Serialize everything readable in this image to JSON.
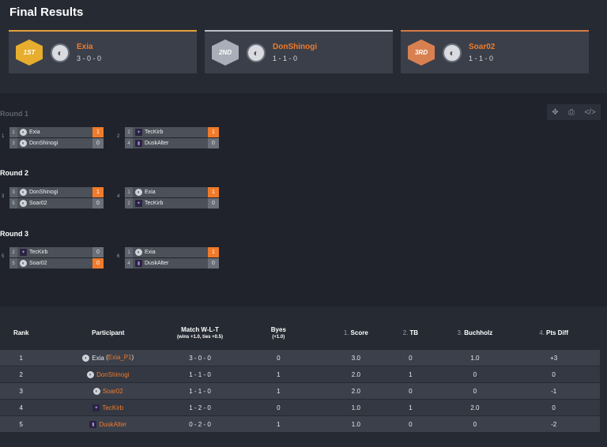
{
  "title": "Final Results",
  "podium": [
    {
      "medal": "1ST",
      "name": "Exia",
      "record": "3 - 0 - 0"
    },
    {
      "medal": "2ND",
      "name": "DonShinogi",
      "record": "1 - 1 - 0"
    },
    {
      "medal": "3RD",
      "name": "Soar02",
      "record": "1 - 1 - 0"
    }
  ],
  "tools": {
    "move_icon": "✥",
    "print_icon": "⎙",
    "code_icon": "</>"
  },
  "rounds": [
    {
      "label": "Round 1",
      "matches": [
        {
          "num": "1",
          "p": [
            {
              "seed": "1",
              "name": "Exia",
              "score": "1"
            },
            {
              "seed": "3",
              "name": "DonShinogi",
              "score": "0"
            }
          ]
        },
        {
          "num": "2",
          "p": [
            {
              "seed": "2",
              "name": "TecKirb",
              "score": "1"
            },
            {
              "seed": "4",
              "name": "DuskAlter",
              "score": "0"
            }
          ]
        }
      ]
    },
    {
      "label": "Round 2",
      "matches": [
        {
          "num": "3",
          "p": [
            {
              "seed": "3",
              "name": "DonShinogi",
              "score": "1"
            },
            {
              "seed": "5",
              "name": "Soar02",
              "score": "0"
            }
          ]
        },
        {
          "num": "4",
          "p": [
            {
              "seed": "1",
              "name": "Exia",
              "score": "1"
            },
            {
              "seed": "2",
              "name": "TecKirb",
              "score": "0"
            }
          ]
        }
      ]
    },
    {
      "label": "Round 3",
      "matches": [
        {
          "num": "5",
          "p": [
            {
              "seed": "2",
              "name": "TecKirb",
              "score": "0"
            },
            {
              "seed": "5",
              "name": "Soar02",
              "score": "0"
            }
          ]
        },
        {
          "num": "6",
          "p": [
            {
              "seed": "1",
              "name": "Exia",
              "score": "1"
            },
            {
              "seed": "4",
              "name": "DuskAlter",
              "score": "0"
            }
          ]
        }
      ]
    }
  ],
  "table": {
    "headers": {
      "rank": "Rank",
      "participant": "Participant",
      "match": "Match W-L-T",
      "match_sub": "(wins +1.0, ties +0.5)",
      "byes": "Byes",
      "byes_sub": "(+1.0)",
      "score_num": "1.",
      "score": "Score",
      "tb_num": "2.",
      "tb": "TB",
      "buchholz_num": "3.",
      "buchholz": "Buchholz",
      "pts_num": "4.",
      "pts": "Pts Diff"
    },
    "rows": [
      {
        "rank": "1",
        "name": "Exia",
        "paren_open": " (",
        "handle": "Exia_P1",
        "paren_close": ")",
        "wlt": "3 - 0 - 0",
        "byes": "0",
        "score": "3.0",
        "tb": "0",
        "buchholz": "1.0",
        "pts": "+3"
      },
      {
        "rank": "2",
        "name": "DonShinogi",
        "wlt": "1 - 1 - 0",
        "byes": "1",
        "score": "2.0",
        "tb": "1",
        "buchholz": "0",
        "pts": "0"
      },
      {
        "rank": "3",
        "name": "Soar02",
        "wlt": "1 - 1 - 0",
        "byes": "1",
        "score": "2.0",
        "tb": "0",
        "buchholz": "0",
        "pts": "-1"
      },
      {
        "rank": "4",
        "name": "TecKirb",
        "wlt": "1 - 2 - 0",
        "byes": "0",
        "score": "1.0",
        "tb": "1",
        "buchholz": "2.0",
        "pts": "0"
      },
      {
        "rank": "5",
        "name": "DuskAlter",
        "wlt": "0 - 2 - 0",
        "byes": "1",
        "score": "1.0",
        "tb": "0",
        "buchholz": "0",
        "pts": "-2"
      }
    ]
  }
}
